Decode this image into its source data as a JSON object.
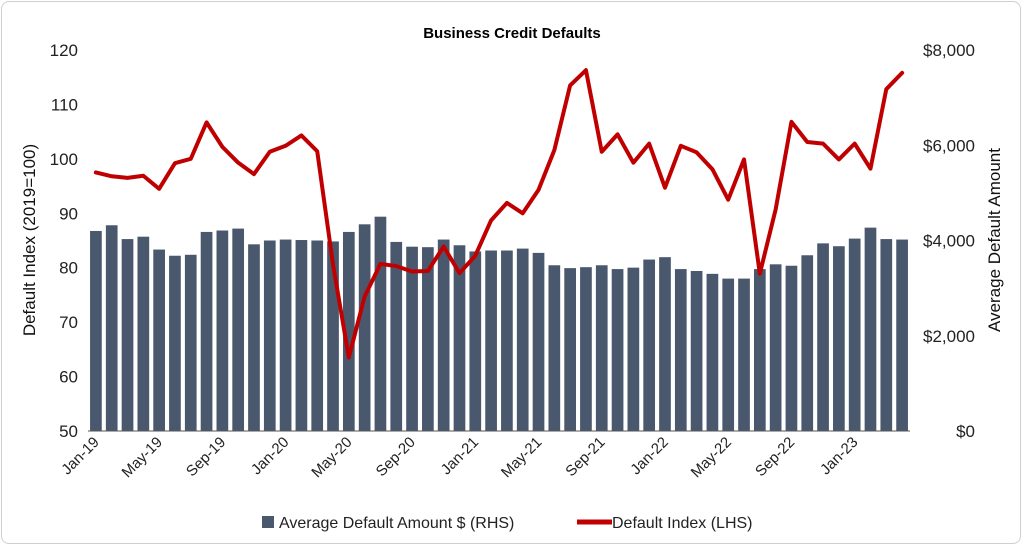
{
  "chart_data": {
    "type": "bar+line",
    "title": "Business Credit Defaults",
    "ylabel_left": "Default Index (2019=100)",
    "ylabel_right": "Average Default Amount",
    "ylim_left": [
      50,
      120
    ],
    "yticks_left": [
      "50",
      "60",
      "70",
      "80",
      "90",
      "100",
      "110",
      "120"
    ],
    "ylim_right": [
      0,
      8000
    ],
    "yticks_right": [
      "$0",
      "$2,000",
      "$4,000",
      "$6,000",
      "$8,000"
    ],
    "x_tick_labels": [
      "Jan-19",
      "May-19",
      "Sep-19",
      "Jan-20",
      "May-20",
      "Sep-20",
      "Jan-21",
      "May-21",
      "Sep-21",
      "Jan-22",
      "May-22",
      "Sep-22",
      "Jan-23"
    ],
    "x_tick_every": 4,
    "grid": false,
    "legend_position": "bottom",
    "colors": {
      "bars": "#4a586e",
      "line": "#c00000"
    },
    "categories": [
      "Jan-19",
      "Feb-19",
      "Mar-19",
      "Apr-19",
      "May-19",
      "Jun-19",
      "Jul-19",
      "Aug-19",
      "Sep-19",
      "Oct-19",
      "Nov-19",
      "Dec-19",
      "Jan-20",
      "Feb-20",
      "Mar-20",
      "Apr-20",
      "May-20",
      "Jun-20",
      "Jul-20",
      "Aug-20",
      "Sep-20",
      "Oct-20",
      "Nov-20",
      "Dec-20",
      "Jan-21",
      "Feb-21",
      "Mar-21",
      "Apr-21",
      "May-21",
      "Jun-21",
      "Jul-21",
      "Aug-21",
      "Sep-21",
      "Oct-21",
      "Nov-21",
      "Dec-21",
      "Jan-22",
      "Feb-22",
      "Mar-22",
      "Apr-22",
      "May-22",
      "Jun-22",
      "Jul-22",
      "Aug-22",
      "Sep-22",
      "Oct-22",
      "Nov-22",
      "Dec-22",
      "Jan-23",
      "Feb-23",
      "Mar-23",
      "Apr-23"
    ],
    "series": [
      {
        "name": "Average Default Amount $ (RHS)",
        "type": "bar",
        "axis": "right",
        "values": [
          4200,
          4320,
          4030,
          4080,
          3810,
          3680,
          3700,
          4180,
          4210,
          4250,
          3920,
          4000,
          4020,
          4010,
          4000,
          3980,
          4180,
          4340,
          4500,
          3970,
          3870,
          3860,
          4020,
          3900,
          3770,
          3790,
          3790,
          3830,
          3740,
          3480,
          3420,
          3440,
          3480,
          3400,
          3430,
          3600,
          3650,
          3400,
          3360,
          3300,
          3200,
          3200,
          3400,
          3500,
          3470,
          3690,
          3940,
          3880,
          4040,
          4270,
          4030,
          4020
        ]
      },
      {
        "name": "Default Index (LHS)",
        "type": "line",
        "axis": "left",
        "values": [
          97.5,
          96.8,
          96.5,
          96.9,
          94.5,
          99.2,
          100.0,
          106.7,
          102.2,
          99.3,
          97.2,
          101.3,
          102.4,
          104.3,
          101.4,
          80.6,
          63.5,
          74.7,
          80.7,
          80.3,
          79.3,
          79.4,
          83.9,
          79.0,
          82.2,
          88.7,
          91.9,
          90.0,
          94.3,
          101.6,
          113.5,
          116.3,
          101.3,
          104.5,
          99.3,
          102.8,
          94.7,
          102.4,
          101.2,
          98.1,
          92.5,
          99.9,
          78.9,
          90.7,
          106.8,
          103.1,
          102.8,
          99.9,
          102.8,
          98.2,
          112.8,
          115.8
        ]
      }
    ]
  }
}
